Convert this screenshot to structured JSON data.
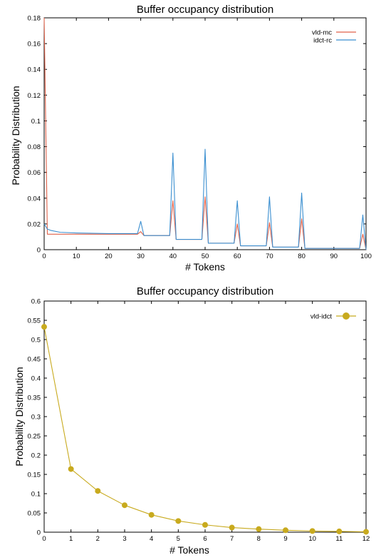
{
  "chart_data": [
    {
      "type": "line",
      "title": "Buffer occupancy distribution",
      "xlabel": "# Tokens",
      "ylabel": "Probability Distribution",
      "xlim": [
        0,
        100
      ],
      "ylim": [
        0,
        0.18
      ],
      "xticks": [
        "0",
        "10",
        "20",
        "30",
        "40",
        "50",
        "60",
        "70",
        "80",
        "90",
        "100"
      ],
      "yticks": [
        "0",
        "0.02",
        "0.04",
        "0.06",
        "0.08",
        "0.1",
        "0.12",
        "0.14",
        "0.16",
        "0.18"
      ],
      "legend_position": "top-right",
      "grid": false,
      "series": [
        {
          "name": "vld-mc",
          "color": "#e0624a",
          "x": [
            0,
            1,
            2,
            5,
            10,
            20,
            29,
            30,
            31,
            39,
            40,
            41,
            49,
            50,
            51,
            59,
            60,
            61,
            69,
            70,
            71,
            79,
            80,
            81,
            98,
            99,
            100
          ],
          "y": [
            0.18,
            0.012,
            0.012,
            0.012,
            0.012,
            0.012,
            0.012,
            0.014,
            0.011,
            0.011,
            0.038,
            0.008,
            0.008,
            0.041,
            0.005,
            0.005,
            0.02,
            0.003,
            0.003,
            0.021,
            0.002,
            0.002,
            0.024,
            0.001,
            0.001,
            0.012,
            0.0
          ]
        },
        {
          "name": "idct-rc",
          "color": "#3b8fd0",
          "x": [
            0,
            1,
            2,
            5,
            10,
            20,
            29,
            30,
            31,
            39,
            40,
            41,
            49,
            50,
            51,
            59,
            60,
            61,
            69,
            70,
            71,
            79,
            80,
            81,
            98,
            99,
            100
          ],
          "y": [
            0.02,
            0.016,
            0.015,
            0.0135,
            0.013,
            0.0125,
            0.0125,
            0.022,
            0.011,
            0.011,
            0.075,
            0.008,
            0.008,
            0.078,
            0.005,
            0.005,
            0.038,
            0.003,
            0.003,
            0.041,
            0.002,
            0.002,
            0.044,
            0.001,
            0.001,
            0.027,
            0.0
          ]
        }
      ]
    },
    {
      "type": "line",
      "title": "Buffer occupancy distribution",
      "xlabel": "# Tokens",
      "ylabel": "Probability Distribution",
      "xlim": [
        0,
        12
      ],
      "ylim": [
        0,
        0.6
      ],
      "xticks": [
        "0",
        "1",
        "2",
        "3",
        "4",
        "5",
        "6",
        "7",
        "8",
        "9",
        "10",
        "11",
        "12"
      ],
      "yticks": [
        "0",
        "0.05",
        "0.1",
        "0.15",
        "0.2",
        "0.25",
        "0.3",
        "0.35",
        "0.4",
        "0.45",
        "0.5",
        "0.55",
        "0.6"
      ],
      "legend_position": "top-right",
      "grid": false,
      "series": [
        {
          "name": "vld-idct",
          "color": "#c8aa1e",
          "markers": true,
          "x": [
            0,
            1,
            2,
            3,
            4,
            5,
            6,
            7,
            8,
            9,
            10,
            11,
            12
          ],
          "y": [
            0.533,
            0.164,
            0.107,
            0.07,
            0.045,
            0.029,
            0.019,
            0.012,
            0.008,
            0.005,
            0.003,
            0.002,
            0.001
          ]
        }
      ]
    }
  ]
}
